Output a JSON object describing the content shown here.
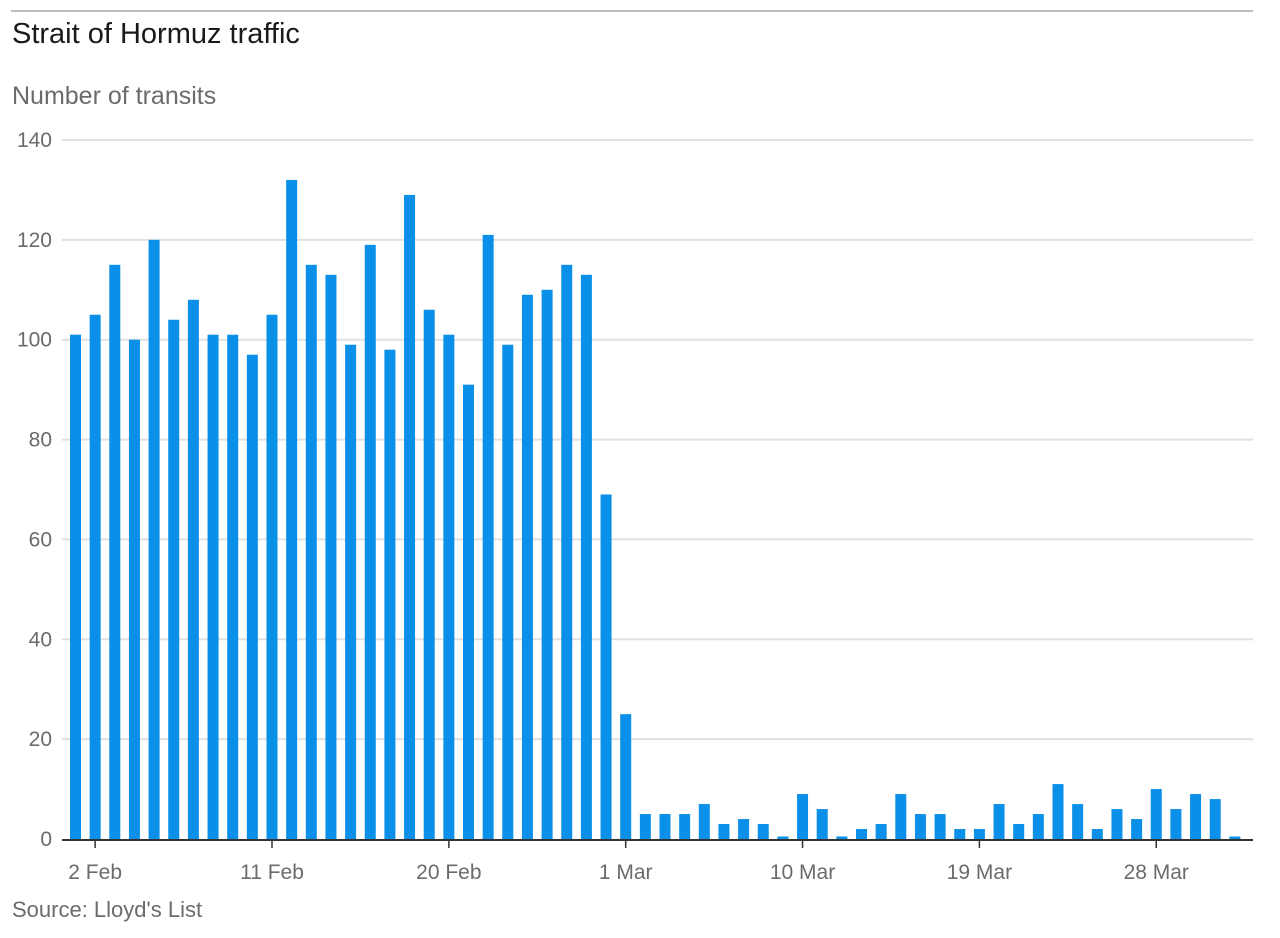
{
  "header": {
    "title": "Strait of Hormuz traffic",
    "subtitle": "Number of transits"
  },
  "footer": {
    "source": "Source: Lloyd's List"
  },
  "colors": {
    "bar": "#0a90e8",
    "grid": "#e0e0e0",
    "axis": "#333333",
    "tick_text": "#6b6b6b"
  },
  "chart_data": {
    "type": "bar",
    "title": "Strait of Hormuz traffic",
    "ylabel": "Number of transits",
    "xlabel": "",
    "ylim": [
      0,
      140
    ],
    "yticks": [
      0,
      20,
      40,
      60,
      80,
      100,
      120,
      140
    ],
    "grid": true,
    "x_tick_labels": [
      {
        "label": "2 Feb",
        "index": 1
      },
      {
        "label": "11 Feb",
        "index": 10
      },
      {
        "label": "20 Feb",
        "index": 19
      },
      {
        "label": "1 Mar",
        "index": 28
      },
      {
        "label": "10 Mar",
        "index": 37
      },
      {
        "label": "19 Mar",
        "index": 46
      },
      {
        "label": "28 Mar",
        "index": 55
      }
    ],
    "categories": [
      "1 Feb",
      "2 Feb",
      "3 Feb",
      "4 Feb",
      "5 Feb",
      "6 Feb",
      "7 Feb",
      "8 Feb",
      "9 Feb",
      "10 Feb",
      "11 Feb",
      "12 Feb",
      "13 Feb",
      "14 Feb",
      "15 Feb",
      "16 Feb",
      "17 Feb",
      "18 Feb",
      "19 Feb",
      "20 Feb",
      "21 Feb",
      "22 Feb",
      "23 Feb",
      "24 Feb",
      "25 Feb",
      "26 Feb",
      "27 Feb",
      "28 Feb",
      "1 Mar",
      "2 Mar",
      "3 Mar",
      "4 Mar",
      "5 Mar",
      "6 Mar",
      "7 Mar",
      "8 Mar",
      "9 Mar",
      "10 Mar",
      "11 Mar",
      "12 Mar",
      "13 Mar",
      "14 Mar",
      "15 Mar",
      "16 Mar",
      "17 Mar",
      "18 Mar",
      "19 Mar",
      "20 Mar",
      "21 Mar",
      "22 Mar",
      "23 Mar",
      "24 Mar",
      "25 Mar",
      "26 Mar",
      "27 Mar",
      "28 Mar",
      "29 Mar",
      "30 Mar",
      "31 Mar",
      "1 Apr"
    ],
    "values": [
      101,
      105,
      115,
      100,
      120,
      104,
      108,
      101,
      101,
      97,
      105,
      132,
      115,
      113,
      99,
      119,
      98,
      129,
      106,
      101,
      91,
      121,
      99,
      109,
      110,
      115,
      113,
      69,
      25,
      5,
      5,
      5,
      7,
      3,
      4,
      3,
      0.5,
      9,
      6,
      0.5,
      2,
      3,
      9,
      5,
      5,
      2,
      2,
      7,
      3,
      5,
      11,
      7,
      2,
      6,
      4,
      10,
      6,
      9,
      8,
      0.5
    ]
  }
}
